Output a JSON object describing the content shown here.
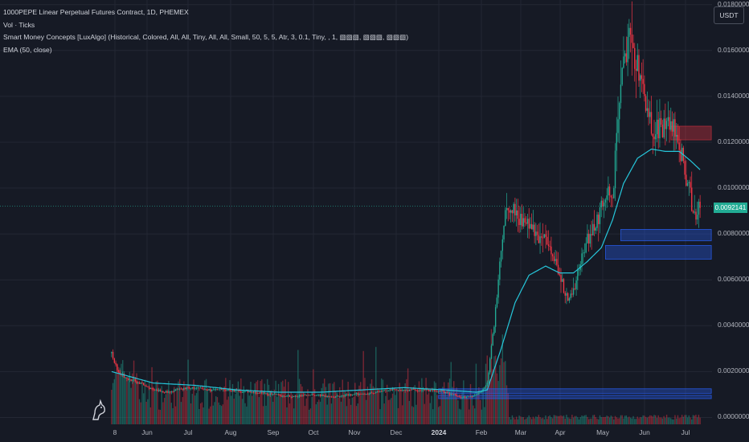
{
  "legend": {
    "symbol": "1000PEPE Linear Perpetual Futures Contract, 1D, PHEMEX",
    "volume": "Vol · Ticks",
    "smc": "Smart Money Concepts [LuxAlgo] (Historical, Colored, All, All, Tiny, All, All, Small, 50, 5, 5, Atr, 3, 0.1, Tiny, , 1, ▧▧▧, ▧▧▧, ▧▧▧)",
    "ema": "EMA (50, close)"
  },
  "currency": "USDT",
  "last_price": "0.0092141",
  "colors": {
    "background": "#161a25",
    "up": "#22ab94",
    "down": "#f23645",
    "ema": "#26c6da",
    "bear_zone": "#f2364555",
    "bull_zone": "#2962ff55"
  },
  "icons": {
    "logo": "tradingview-logo-icon"
  },
  "chart_data": {
    "type": "candlestick",
    "y_axis": {
      "labels": [
        "0.0180000",
        "0.0160000",
        "0.0140000",
        "0.0120000",
        "0.0100000",
        "0.0080000",
        "0.0060000",
        "0.0040000",
        "0.0020000",
        "0.0000000"
      ],
      "values": [
        0.018,
        0.016,
        0.014,
        0.012,
        0.01,
        0.008,
        0.006,
        0.004,
        0.002,
        0.0
      ],
      "ylim": [
        -0.0003,
        0.0182
      ]
    },
    "x_axis": {
      "labels": [
        "8",
        "Jun",
        "Jul",
        "Aug",
        "Sep",
        "Oct",
        "Nov",
        "Dec",
        "2024",
        "Feb",
        "Mar",
        "Apr",
        "May",
        "Jun",
        "Jul"
      ],
      "bold": [
        "2024"
      ]
    },
    "price_keypoints": [
      [
        0,
        0.0028
      ],
      [
        4,
        0.0021
      ],
      [
        10,
        0.0017
      ],
      [
        20,
        0.0015
      ],
      [
        30,
        0.0012
      ],
      [
        40,
        0.0011
      ],
      [
        55,
        0.0013
      ],
      [
        70,
        0.0012
      ],
      [
        85,
        0.0012
      ],
      [
        100,
        0.0011
      ],
      [
        115,
        0.001
      ],
      [
        130,
        0.0009
      ],
      [
        145,
        0.001
      ],
      [
        160,
        0.0009
      ],
      [
        175,
        0.001
      ],
      [
        190,
        0.0011
      ],
      [
        200,
        0.0012
      ],
      [
        210,
        0.0012
      ],
      [
        225,
        0.0012
      ],
      [
        240,
        0.0011
      ],
      [
        250,
        0.0009
      ],
      [
        258,
        0.0009
      ],
      [
        265,
        0.0011
      ],
      [
        270,
        0.0015
      ],
      [
        275,
        0.004
      ],
      [
        279,
        0.0068
      ],
      [
        283,
        0.009
      ],
      [
        288,
        0.0092
      ],
      [
        295,
        0.0086
      ],
      [
        302,
        0.0082
      ],
      [
        310,
        0.0078
      ],
      [
        316,
        0.0074
      ],
      [
        322,
        0.0062
      ],
      [
        325,
        0.0055
      ],
      [
        330,
        0.0052
      ],
      [
        336,
        0.0065
      ],
      [
        342,
        0.0078
      ],
      [
        350,
        0.0088
      ],
      [
        355,
        0.0098
      ],
      [
        360,
        0.0095
      ],
      [
        366,
        0.015
      ],
      [
        372,
        0.0165
      ],
      [
        378,
        0.0152
      ],
      [
        384,
        0.0138
      ],
      [
        390,
        0.0124
      ],
      [
        396,
        0.0126
      ],
      [
        402,
        0.0128
      ],
      [
        408,
        0.0118
      ],
      [
        412,
        0.011
      ],
      [
        416,
        0.0098
      ],
      [
        419,
        0.0087
      ],
      [
        423,
        0.0092
      ]
    ],
    "ema50_keypoints": [
      [
        0,
        0.002
      ],
      [
        30,
        0.0015
      ],
      [
        60,
        0.0014
      ],
      [
        90,
        0.0012
      ],
      [
        120,
        0.0011
      ],
      [
        150,
        0.0011
      ],
      [
        180,
        0.0012
      ],
      [
        210,
        0.0013
      ],
      [
        240,
        0.0012
      ],
      [
        262,
        0.0011
      ],
      [
        270,
        0.0012
      ],
      [
        280,
        0.003
      ],
      [
        290,
        0.005
      ],
      [
        300,
        0.0062
      ],
      [
        312,
        0.0066
      ],
      [
        322,
        0.0063
      ],
      [
        332,
        0.0063
      ],
      [
        342,
        0.0068
      ],
      [
        352,
        0.0074
      ],
      [
        360,
        0.0086
      ],
      [
        368,
        0.0102
      ],
      [
        378,
        0.0113
      ],
      [
        388,
        0.0117
      ],
      [
        398,
        0.0116
      ],
      [
        408,
        0.0116
      ],
      [
        416,
        0.0112
      ],
      [
        423,
        0.0108
      ]
    ],
    "zones": [
      {
        "kind": "bear",
        "x_start": 402,
        "x_end": 423,
        "y_low": 0.0121,
        "y_high": 0.0127
      },
      {
        "kind": "bull",
        "x_start": 366,
        "x_end": 423,
        "y_low": 0.0077,
        "y_high": 0.0082
      },
      {
        "kind": "bull",
        "x_start": 355,
        "x_end": 423,
        "y_low": 0.0069,
        "y_high": 0.0075
      },
      {
        "kind": "bull",
        "x_start": 235,
        "x_end": 423,
        "y_low": 0.00105,
        "y_high": 0.00125
      },
      {
        "kind": "bull",
        "x_start": 235,
        "x_end": 423,
        "y_low": 0.00082,
        "y_high": 0.00097
      }
    ],
    "bars_count": 424
  }
}
